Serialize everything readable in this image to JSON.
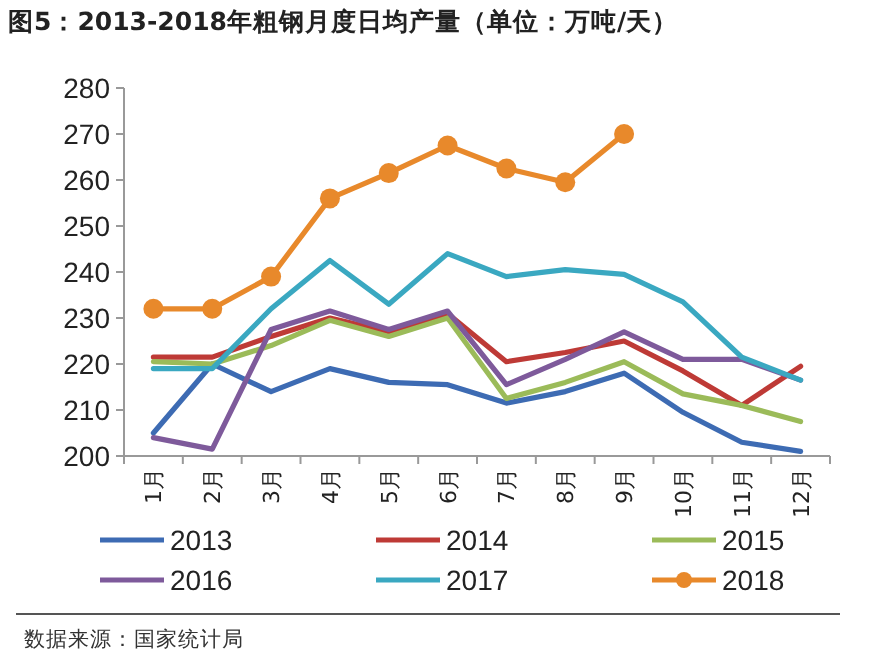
{
  "chart_data": {
    "type": "line",
    "title": "图5：2013-2018年粗钢月度日均产量（单位：万吨/天）",
    "categories": [
      "1月",
      "2月",
      "3月",
      "4月",
      "5月",
      "6月",
      "7月",
      "8月",
      "9月",
      "10月",
      "11月",
      "12月"
    ],
    "series": [
      {
        "name": "2013",
        "color": "#3d6bb3",
        "values": [
          205,
          220,
          214,
          219,
          216,
          215.5,
          211.5,
          214,
          218,
          209.5,
          203,
          201
        ]
      },
      {
        "name": "2014",
        "color": "#be3a36",
        "values": [
          221.5,
          221.5,
          226,
          230,
          227,
          231,
          220.5,
          222.5,
          225,
          218.5,
          211,
          219.5
        ]
      },
      {
        "name": "2015",
        "color": "#9bbb59",
        "values": [
          220.5,
          220,
          224,
          229.5,
          226,
          230,
          212.5,
          216,
          220.5,
          213.5,
          211,
          207.5
        ]
      },
      {
        "name": "2016",
        "color": "#7e5a9b",
        "values": [
          204,
          201.5,
          227.5,
          231.5,
          227.5,
          231.5,
          215.5,
          221,
          227,
          221,
          221,
          216.5
        ]
      },
      {
        "name": "2017",
        "color": "#3aa8c1",
        "values": [
          219,
          219,
          232,
          242.5,
          233,
          244,
          239,
          240.5,
          239.5,
          233.5,
          221.5,
          216.5
        ]
      },
      {
        "name": "2018",
        "color": "#e8892b",
        "marker": "circle",
        "values": [
          232,
          232,
          239,
          256,
          261.5,
          267.5,
          262.5,
          259.5,
          270,
          null,
          null,
          null
        ]
      }
    ],
    "ylim": [
      200,
      280
    ],
    "yticks": [
      200,
      210,
      220,
      230,
      240,
      250,
      260,
      270,
      280
    ],
    "legend": "bottom",
    "grid": false,
    "annotations": [
      "数据来源：国家统计局"
    ]
  }
}
